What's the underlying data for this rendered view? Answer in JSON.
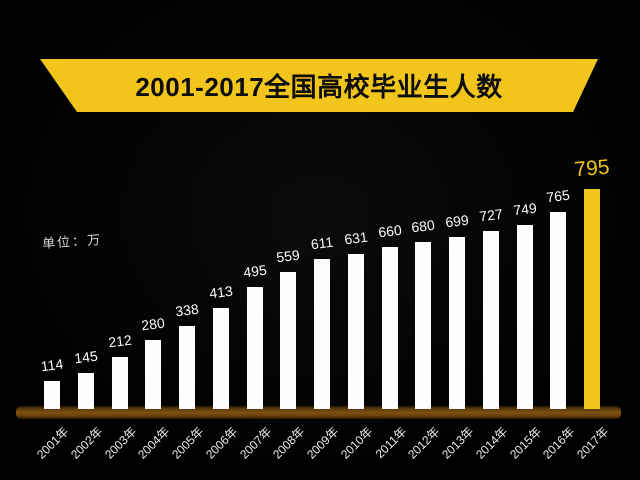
{
  "title": {
    "text": "2001-2017全国高校毕业生人数"
  },
  "unit_label": "单位：万",
  "colors": {
    "background": "#000000",
    "accent_yellow": "#F2C51C",
    "bar_white": "#FDFDFD",
    "baseline_brown": "#7D5013",
    "value_label_white": "#FBFBFB",
    "title_text_black": "#0D0D0D"
  },
  "chart_data": {
    "type": "bar",
    "title": "2001-2017全国高校毕业生人数",
    "unit": "单位：万",
    "categories": [
      "2001年",
      "2002年",
      "2003年",
      "2004年",
      "2005年",
      "2006年",
      "2007年",
      "2008年",
      "2009年",
      "2010年",
      "2011年",
      "2012年",
      "2013年",
      "2014年",
      "2015年",
      "2016年",
      "2017年"
    ],
    "values": [
      114,
      145,
      212,
      280,
      338,
      413,
      495,
      559,
      611,
      631,
      660,
      680,
      699,
      727,
      749,
      765,
      795
    ],
    "bar_color": "#FDFDFD",
    "highlight_index": 16,
    "highlight_color": "#F2C51C",
    "xlabel": "",
    "ylabel": "单位：万",
    "ylim": [
      0,
      820
    ],
    "grid": false,
    "legend": false
  }
}
